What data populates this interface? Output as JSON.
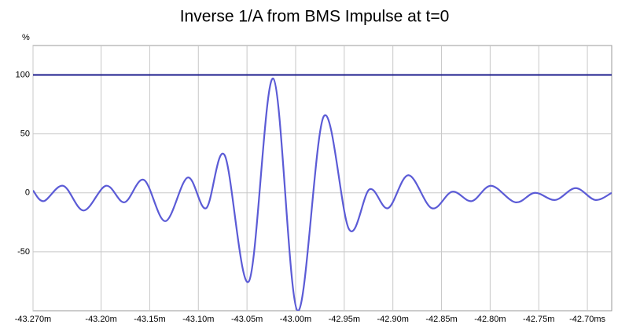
{
  "chart_data": {
    "type": "line",
    "title": "Inverse 1/A from BMS Impulse at t=0",
    "y_label": "%",
    "x": [
      -43.27,
      -43.259,
      -43.239,
      -43.218,
      -43.195,
      -43.176,
      -43.156,
      -43.134,
      -43.111,
      -43.092,
      -43.073,
      -43.048,
      -43.023,
      -42.998,
      -42.971,
      -42.945,
      -42.924,
      -42.905,
      -42.884,
      -42.86,
      -42.839,
      -42.819,
      -42.799,
      -42.774,
      -42.754,
      -42.733,
      -42.712,
      -42.692,
      -42.675
    ],
    "series": [
      {
        "color": "#5b5bd6",
        "values": [
          2,
          -7,
          6,
          -15,
          6,
          -8,
          11,
          -24,
          13,
          -13,
          32,
          -75,
          97,
          -100,
          65,
          -31,
          3,
          -13,
          15,
          -13,
          1,
          -7,
          6,
          -8,
          0,
          -6,
          4,
          -6,
          0
        ]
      }
    ],
    "reference_line": {
      "value": 100,
      "color": "#1c1c8c"
    },
    "xlim": [
      -43.27,
      -42.675
    ],
    "ylim": [
      -100,
      125
    ],
    "xticks": [
      {
        "value": -43.27,
        "label": "-43.270m"
      },
      {
        "value": -43.2,
        "label": "-43.20m"
      },
      {
        "value": -43.15,
        "label": "-43.15m"
      },
      {
        "value": -43.1,
        "label": "-43.10m"
      },
      {
        "value": -43.05,
        "label": "-43.05m"
      },
      {
        "value": -43.0,
        "label": "-43.00m"
      },
      {
        "value": -42.95,
        "label": "-42.95m"
      },
      {
        "value": -42.9,
        "label": "-42.90m"
      },
      {
        "value": -42.85,
        "label": "-42.85m"
      },
      {
        "value": -42.8,
        "label": "-42.80m"
      },
      {
        "value": -42.75,
        "label": "-42.75m"
      },
      {
        "value": -42.7,
        "label": "-42.70ms"
      }
    ],
    "yticks": [
      -50,
      0,
      50,
      100
    ],
    "grid": true
  }
}
